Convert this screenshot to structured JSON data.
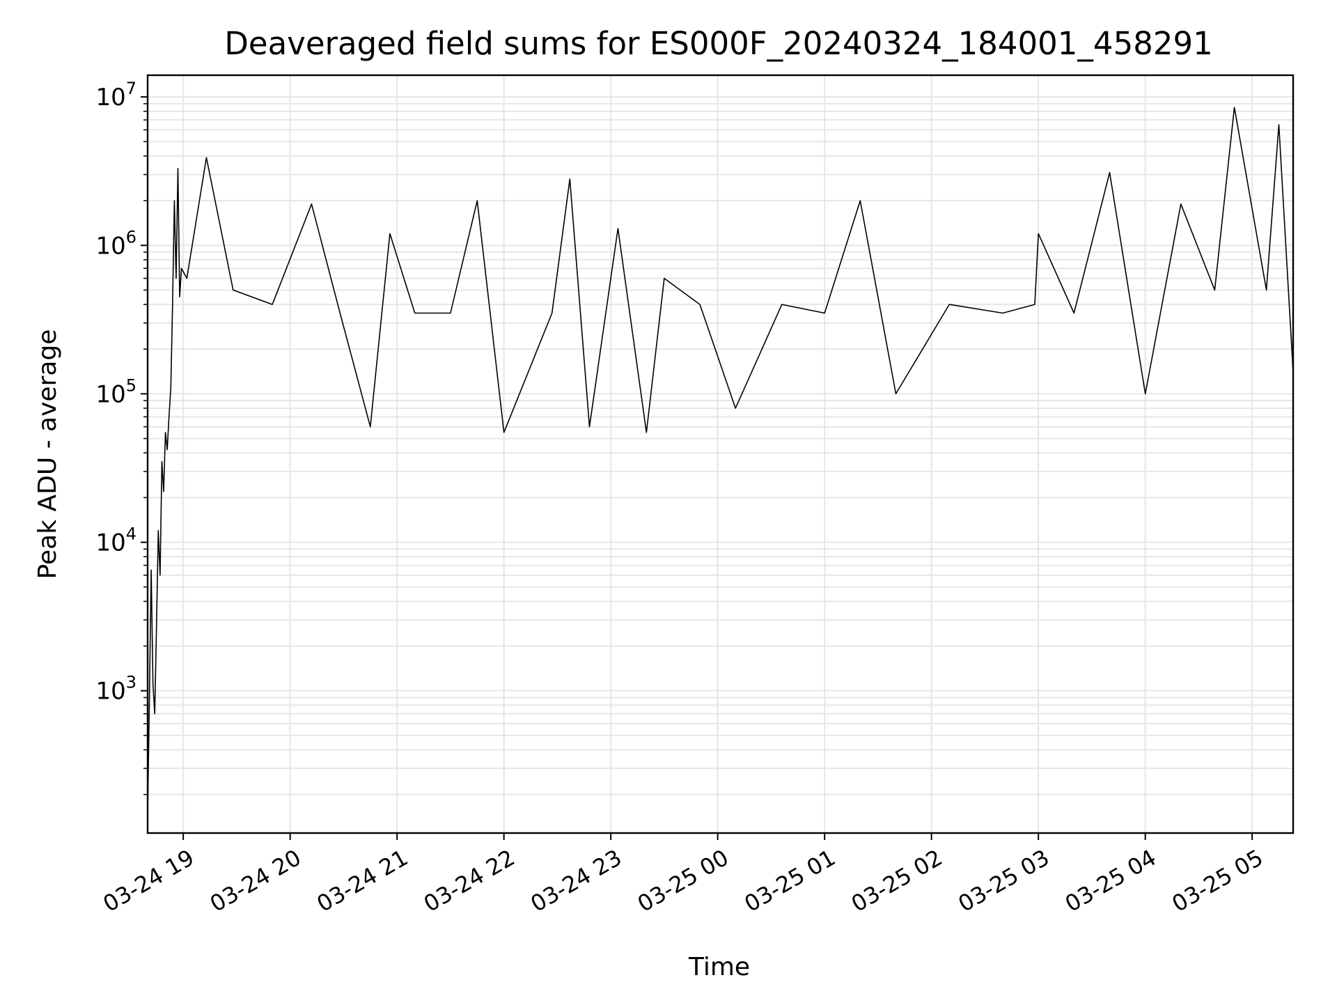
{
  "chart_data": {
    "type": "line",
    "title": "Deaveraged field sums for ES000F_20240324_184001_458291",
    "xlabel": "Time",
    "ylabel": "Peak ADU - average",
    "x_scale": "time",
    "y_scale": "log",
    "xlim": [
      "2024-03-24 18:40",
      "2024-03-25 05:23"
    ],
    "ylim": [
      110,
      14000000
    ],
    "x_ticks": [
      "03-24 19",
      "03-24 20",
      "03-24 21",
      "03-24 22",
      "03-24 23",
      "03-25 00",
      "03-25 01",
      "03-25 02",
      "03-25 03",
      "03-25 04",
      "03-25 05"
    ],
    "y_ticks": [
      {
        "base": "10",
        "exp": "3"
      },
      {
        "base": "10",
        "exp": "4"
      },
      {
        "base": "10",
        "exp": "5"
      },
      {
        "base": "10",
        "exp": "6"
      },
      {
        "base": "10",
        "exp": "7"
      }
    ],
    "grid": true,
    "line_color": "#000000",
    "series": [
      {
        "x": [
          "2024-03-24 18:40",
          "2024-03-24 18:41",
          "2024-03-24 18:42",
          "2024-03-24 18:43",
          "2024-03-24 18:44",
          "2024-03-24 18:45",
          "2024-03-24 18:46",
          "2024-03-24 18:47",
          "2024-03-24 18:48",
          "2024-03-24 18:49",
          "2024-03-24 18:50",
          "2024-03-24 18:51",
          "2024-03-24 18:52",
          "2024-03-24 18:53",
          "2024-03-24 18:54",
          "2024-03-24 18:55",
          "2024-03-24 18:56",
          "2024-03-24 18:57",
          "2024-03-24 18:58",
          "2024-03-24 18:59",
          "2024-03-24 19:02",
          "2024-03-24 19:13",
          "2024-03-24 19:28",
          "2024-03-24 19:50",
          "2024-03-24 20:12",
          "2024-03-24 20:28",
          "2024-03-24 20:45",
          "2024-03-24 20:56",
          "2024-03-24 21:10",
          "2024-03-24 21:30",
          "2024-03-24 21:45",
          "2024-03-24 22:00",
          "2024-03-24 22:27",
          "2024-03-24 22:37",
          "2024-03-24 22:48",
          "2024-03-24 23:04",
          "2024-03-24 23:20",
          "2024-03-24 23:30",
          "2024-03-24 23:50",
          "2024-03-25 00:10",
          "2024-03-25 00:36",
          "2024-03-25 01:00",
          "2024-03-25 01:20",
          "2024-03-25 01:40",
          "2024-03-25 02:10",
          "2024-03-25 02:40",
          "2024-03-25 02:58",
          "2024-03-25 03:00",
          "2024-03-25 03:20",
          "2024-03-25 03:40",
          "2024-03-25 04:00",
          "2024-03-25 04:20",
          "2024-03-25 04:39",
          "2024-03-25 04:50",
          "2024-03-25 05:08",
          "2024-03-25 05:15",
          "2024-03-25 05:23"
        ],
        "y": [
          150,
          900,
          6500,
          1100,
          700,
          2800,
          12000,
          6000,
          35000,
          22000,
          55000,
          42000,
          70000,
          110000,
          400000,
          2000000,
          600000,
          3300000,
          450000,
          700000,
          600000,
          3900000,
          500000,
          400000,
          1900000,
          350000,
          60000,
          1200000,
          350000,
          350000,
          2000000,
          55000,
          350000,
          2800000,
          60000,
          1300000,
          55000,
          600000,
          400000,
          80000,
          400000,
          350000,
          2000000,
          100000,
          400000,
          350000,
          400000,
          1200000,
          350000,
          3100000,
          100000,
          1900000,
          500000,
          8500000,
          500000,
          6500000,
          140000
        ]
      }
    ]
  }
}
